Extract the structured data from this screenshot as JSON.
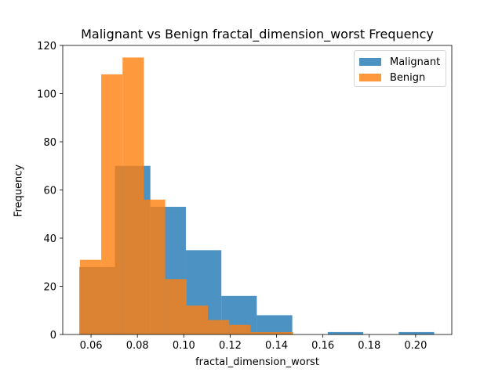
{
  "chart_data": {
    "type": "histogram",
    "title": "Malignant vs Benign fractal_dimension_worst Frequency",
    "xlabel": "fractal_dimension_worst",
    "ylabel": "Frequency",
    "xlim": [
      0.0478,
      0.2156
    ],
    "ylim": [
      0,
      120
    ],
    "xticks": [
      "0.06",
      "0.08",
      "0.10",
      "0.12",
      "0.14",
      "0.16",
      "0.18",
      "0.20"
    ],
    "yticks": [
      "0",
      "20",
      "40",
      "60",
      "80",
      "100",
      "120"
    ],
    "legend": "top-right",
    "grid": false,
    "series": [
      {
        "name": "Malignant",
        "color": "#1f77b4",
        "opacity": 0.8,
        "bin_edges": [
          0.055,
          0.0703,
          0.0856,
          0.1009,
          0.1162,
          0.1315,
          0.1468,
          0.1621,
          0.1774,
          0.1927,
          0.208
        ],
        "counts": [
          28,
          70,
          53,
          35,
          16,
          8,
          0,
          1,
          0,
          1
        ]
      },
      {
        "name": "Benign",
        "color": "#ff7f0e",
        "opacity": 0.8,
        "bin_edges": [
          0.0552,
          0.0644,
          0.0736,
          0.0828,
          0.092,
          0.1012,
          0.1104,
          0.1196,
          0.1288,
          0.138,
          0.1472
        ],
        "counts": [
          31,
          108,
          115,
          56,
          23,
          12,
          6,
          4,
          1,
          1
        ]
      }
    ]
  }
}
